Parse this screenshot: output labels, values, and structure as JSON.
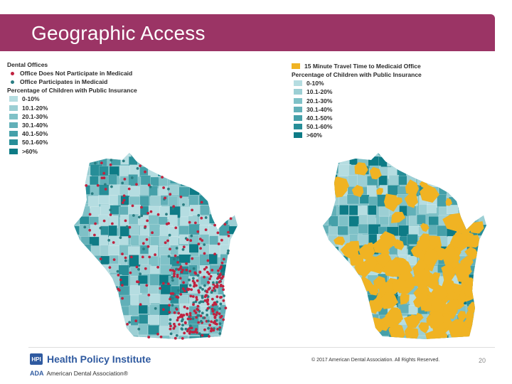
{
  "header": {
    "title": "Geographic Access"
  },
  "legend_left": {
    "title1": "Dental Offices",
    "offices": [
      {
        "label": "Office Does Not Participate in Medicaid",
        "color": "#c0223f"
      },
      {
        "label": "Office Participates in Medicaid",
        "color": "#2a7d82"
      }
    ],
    "title2": "Percentage of Children with Public Insurance",
    "bins": [
      {
        "label": "0-10%",
        "color": "#b5dde1"
      },
      {
        "label": "10.1-20%",
        "color": "#9ccfd4"
      },
      {
        "label": "20.1-30%",
        "color": "#7fc1c7"
      },
      {
        "label": "30.1-40%",
        "color": "#62b0b8"
      },
      {
        "label": "40.1-50%",
        "color": "#45a0a9"
      },
      {
        "label": "50.1-60%",
        "color": "#278e98"
      },
      {
        "label": ">60%",
        "color": "#0d7b86"
      }
    ]
  },
  "legend_right": {
    "travel_label": "15 Minute Travel Time to Medicaid Office",
    "travel_color": "#f0b323",
    "title2": "Percentage of Children with Public Insurance",
    "bins": [
      {
        "label": "0-10%",
        "color": "#b5dde1"
      },
      {
        "label": "10.1-20%",
        "color": "#9ccfd4"
      },
      {
        "label": "20.1-30%",
        "color": "#7fc1c7"
      },
      {
        "label": "30.1-40%",
        "color": "#62b0b8"
      },
      {
        "label": "40.1-50%",
        "color": "#45a0a9"
      },
      {
        "label": "50.1-60%",
        "color": "#278e98"
      },
      {
        "label": ">60%",
        "color": "#0d7b86"
      }
    ]
  },
  "footer": {
    "hpi_logo": "HPI",
    "hpi_name": "Health Policy Institute",
    "ada_mark": "ADA",
    "ada_name": "American Dental Association®",
    "copyright": "© 2017 American Dental Association. All Rights Reserved.",
    "page_number": "20"
  }
}
